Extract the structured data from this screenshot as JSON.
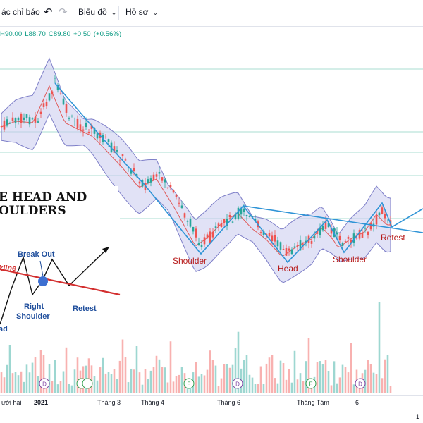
{
  "toolbar": {
    "indicators_label": "ác chỉ báo",
    "chart_label": "Biểu đồ",
    "profile_label": "Hồ sơ",
    "undo_icon": "undo-icon",
    "redo_icon": "redo-icon"
  },
  "ohlc": {
    "high": "H90.00",
    "low": "L88.70",
    "close": "C89.80",
    "change": "+0.50",
    "change_pct": "(+0.56%)",
    "color": "#089981"
  },
  "pattern_annotations": {
    "left_shoulder": "Shoulder",
    "head": "Head",
    "right_shoulder": "Shoulder",
    "retest": "Retest"
  },
  "inset": {
    "title_line1": "E HEAD AND",
    "title_line2": "OULDERS",
    "break_out": "Break Out",
    "neckline": "kline",
    "right_shoulder_1": "Right",
    "right_shoulder_2": "Shoulder",
    "retest": "Retest",
    "head_partial": "ad"
  },
  "xaxis": {
    "labels": [
      "ười hai",
      "2021",
      "Tháng 3",
      "Tháng 4",
      "Tháng 6",
      "Tháng Tám",
      "6"
    ],
    "corner": "1"
  },
  "event_markers": [
    "D",
    "",
    "",
    "F",
    "D",
    "F",
    "D"
  ],
  "colors": {
    "up_candle": "#26a69a",
    "down_candle": "#ef5350",
    "band_fill": "#c9cbee",
    "band_line": "#7e7fc8",
    "ma_line": "#e05a5a",
    "pattern_line": "#2f94d6",
    "annotation_text": "#b71c1c",
    "inset_neckline": "#d32f2f",
    "inset_label": "#1f4e9c",
    "hline": "#a8dcd0"
  }
}
